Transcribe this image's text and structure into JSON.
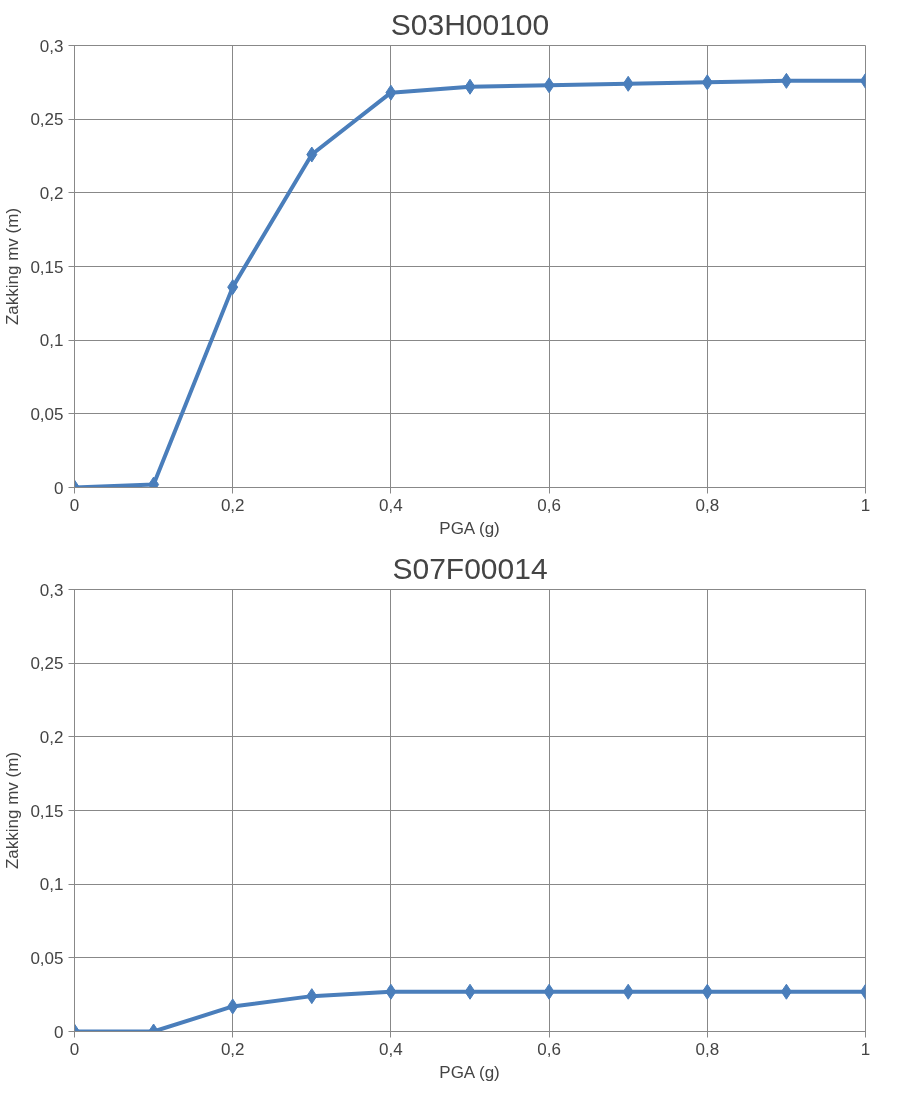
{
  "chart_data": [
    {
      "type": "line",
      "title": "S03H00100",
      "xlabel": "PGA (g)",
      "ylabel": "Zakking mv (m)",
      "x": [
        0,
        0.1,
        0.2,
        0.3,
        0.4,
        0.5,
        0.6,
        0.7,
        0.8,
        0.9,
        1
      ],
      "series": [
        {
          "color": "#4a7ebb",
          "values": [
            0,
            0.002,
            0.136,
            0.226,
            0.268,
            0.272,
            0.273,
            0.274,
            0.275,
            0.276,
            0.276
          ]
        }
      ],
      "xlim": [
        0,
        1
      ],
      "ylim": [
        0,
        0.3
      ],
      "xticks": [
        0,
        {
          "value": 0.2,
          "label": "0,2"
        },
        {
          "value": 0.4,
          "label": "0,4"
        },
        {
          "value": 0.6,
          "label": "0,6"
        },
        {
          "value": 0.8,
          "label": "0,8"
        },
        1
      ],
      "yticks": [
        0,
        {
          "value": 0.05,
          "label": "0,05"
        },
        {
          "value": 0.1,
          "label": "0,1"
        },
        {
          "value": 0.15,
          "label": "0,15"
        },
        {
          "value": 0.2,
          "label": "0,2"
        },
        {
          "value": 0.25,
          "label": "0,25"
        },
        {
          "value": 0.3,
          "label": "0,3"
        }
      ],
      "grid": true,
      "marker": "diamond",
      "line_style": "solid"
    },
    {
      "type": "line",
      "title": "S07F00014",
      "xlabel": "PGA (g)",
      "ylabel": "Zakking mv (m)",
      "x": [
        0,
        0.1,
        0.2,
        0.3,
        0.4,
        0.5,
        0.6,
        0.7,
        0.8,
        0.9,
        1
      ],
      "series": [
        {
          "color": "#4a7ebb",
          "values": [
            0,
            0,
            0.017,
            0.024,
            0.027,
            0.027,
            0.027,
            0.027,
            0.027,
            0.027,
            0.027
          ]
        }
      ],
      "xlim": [
        0,
        1
      ],
      "ylim": [
        0,
        0.3
      ],
      "xticks": [
        0,
        {
          "value": 0.2,
          "label": "0,2"
        },
        {
          "value": 0.4,
          "label": "0,4"
        },
        {
          "value": 0.6,
          "label": "0,6"
        },
        {
          "value": 0.8,
          "label": "0,8"
        },
        1
      ],
      "yticks": [
        0,
        {
          "value": 0.05,
          "label": "0,05"
        },
        {
          "value": 0.1,
          "label": "0,1"
        },
        {
          "value": 0.15,
          "label": "0,15"
        },
        {
          "value": 0.2,
          "label": "0,2"
        },
        {
          "value": 0.25,
          "label": "0,25"
        },
        {
          "value": 0.3,
          "label": "0,3"
        }
      ],
      "grid": true,
      "marker": "diamond",
      "line_style": "solid"
    }
  ]
}
